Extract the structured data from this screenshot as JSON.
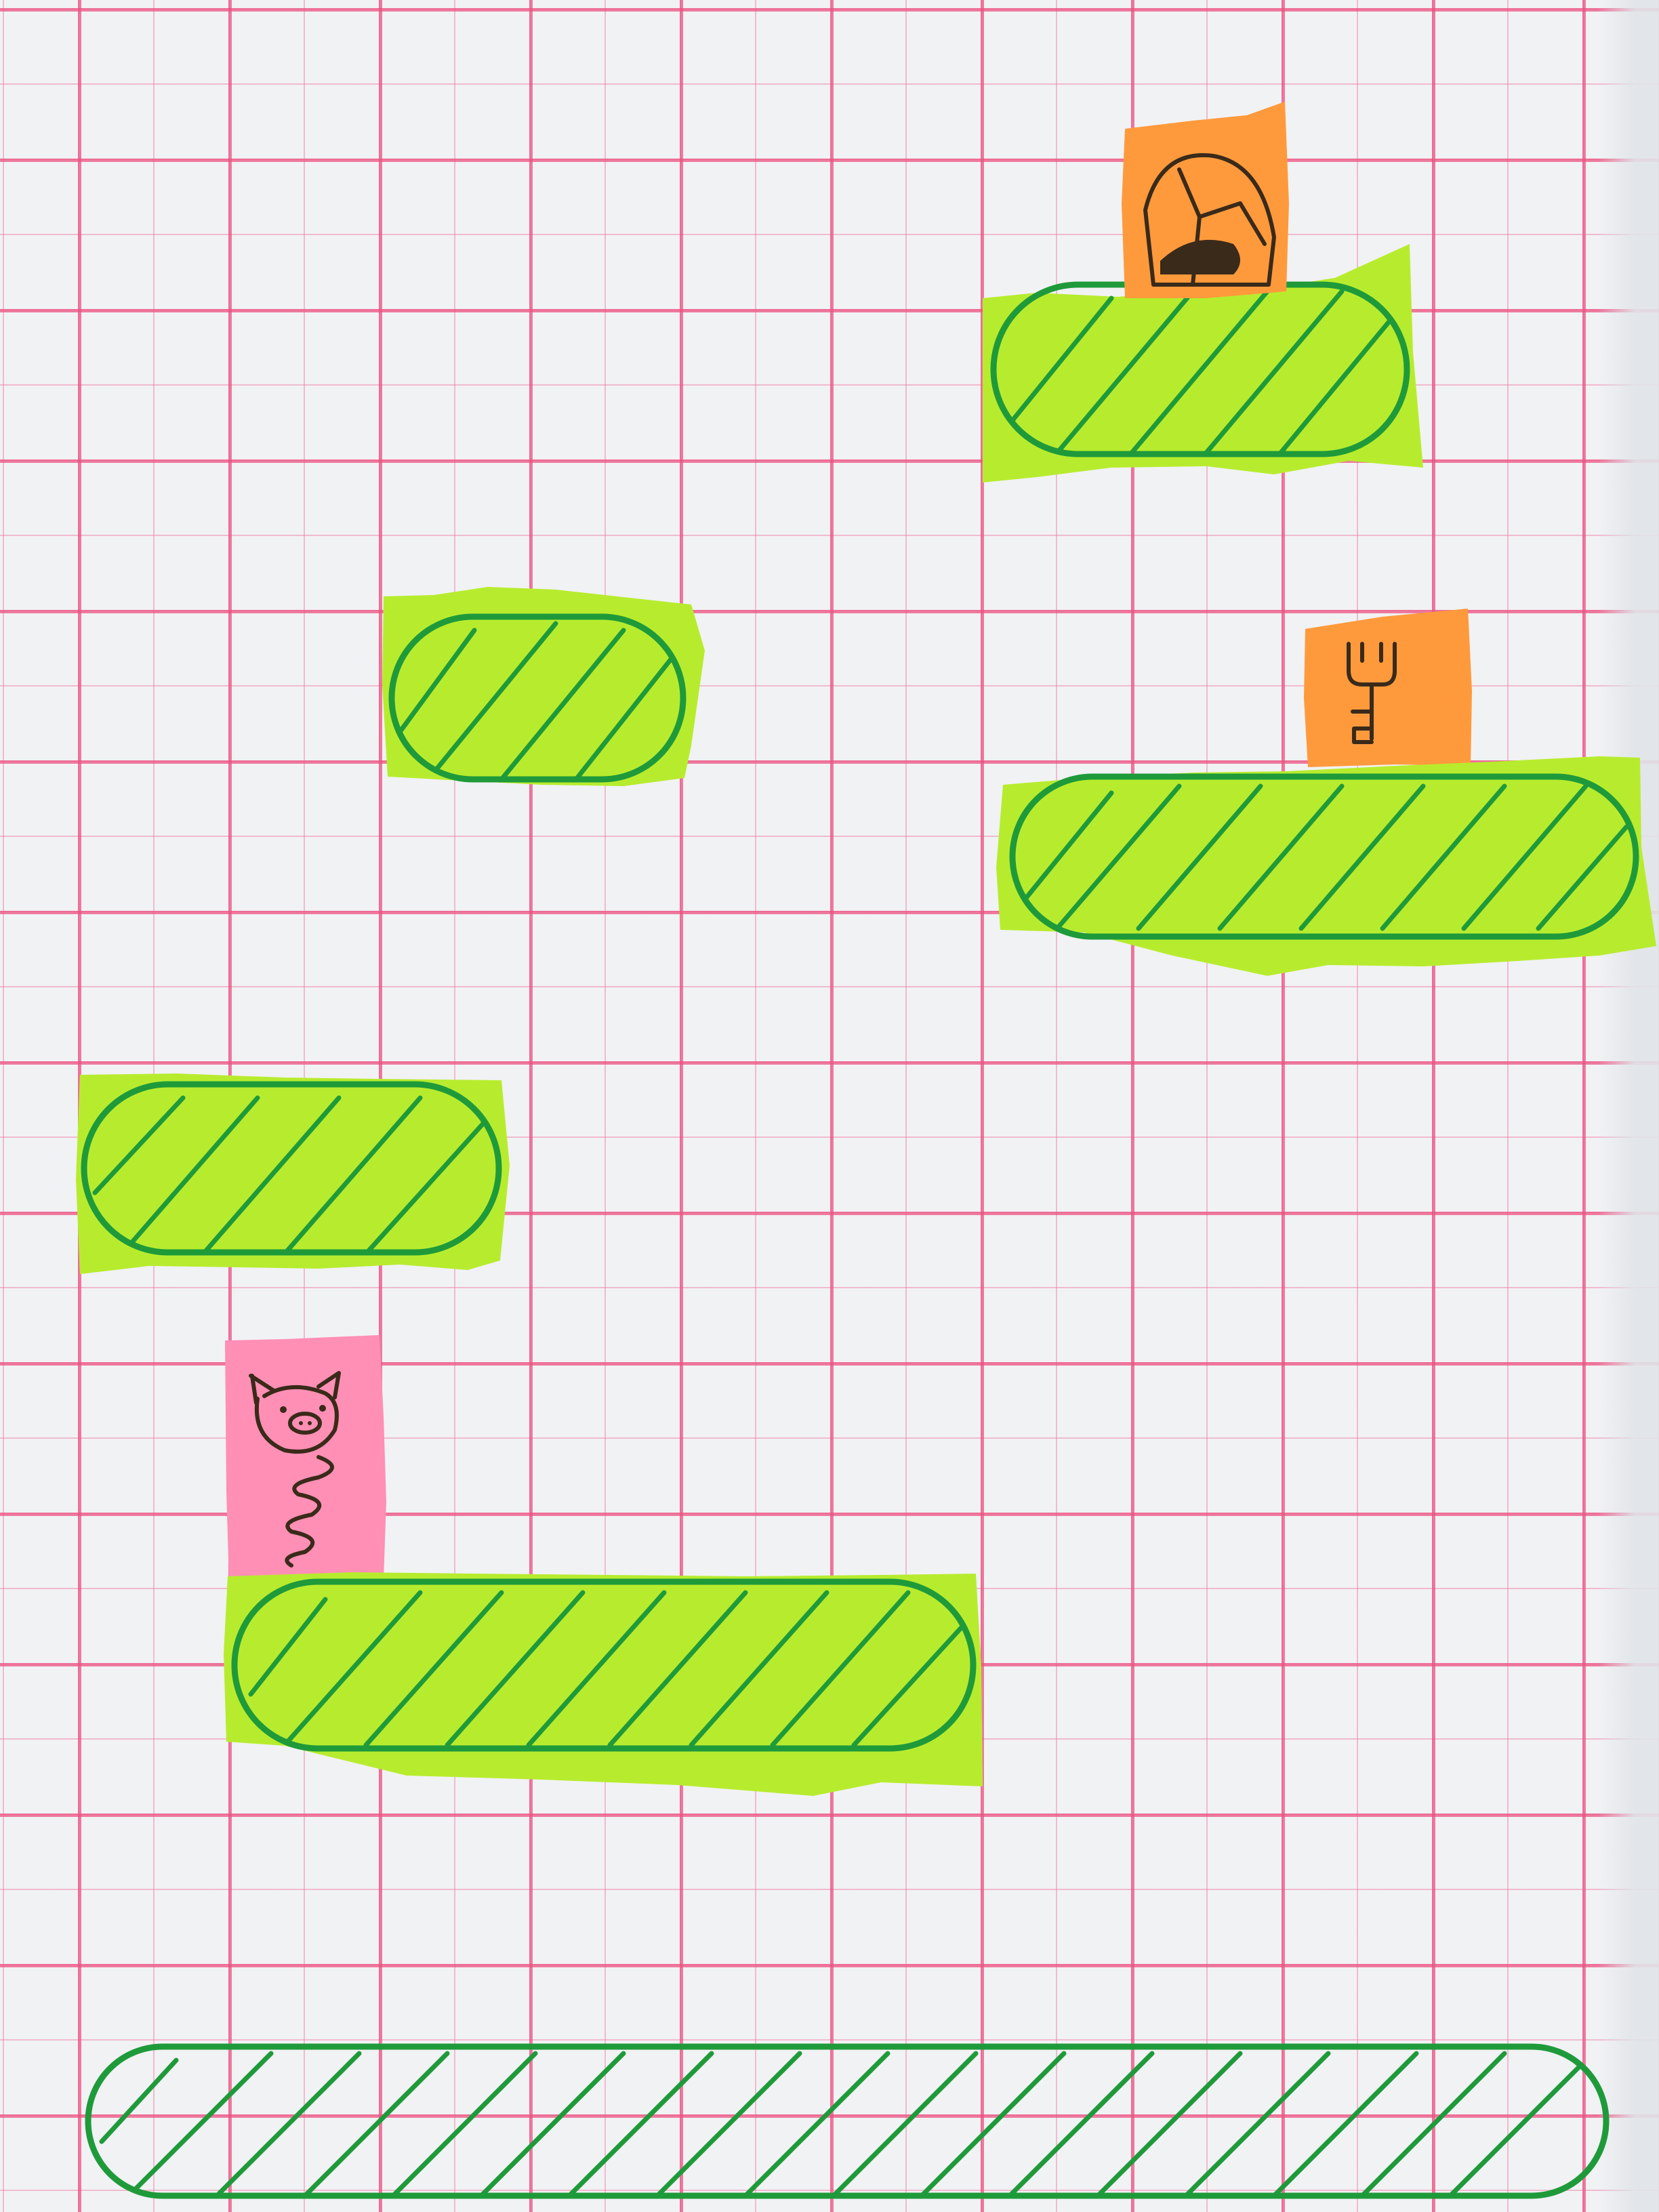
{
  "scene": {
    "background": "graph-paper",
    "colors": {
      "grid_line": "#ec5282",
      "platform_paper": "#b7ec2e",
      "platform_ink": "#1f9a3a",
      "item_sticker": "#ff9a3c",
      "player_sticker": "#ff8fb4",
      "sketch_ink": "#3a2a1a"
    },
    "platforms": [
      {
        "name": "top-right-platform"
      },
      {
        "name": "middle-left-platform"
      },
      {
        "name": "middle-right-platform"
      },
      {
        "name": "left-platform"
      },
      {
        "name": "lower-platform"
      },
      {
        "name": "ground-platform"
      }
    ],
    "items": [
      {
        "name": "door-icon"
      },
      {
        "name": "key-icon"
      }
    ],
    "player": {
      "name": "pig-on-spring-icon"
    }
  }
}
